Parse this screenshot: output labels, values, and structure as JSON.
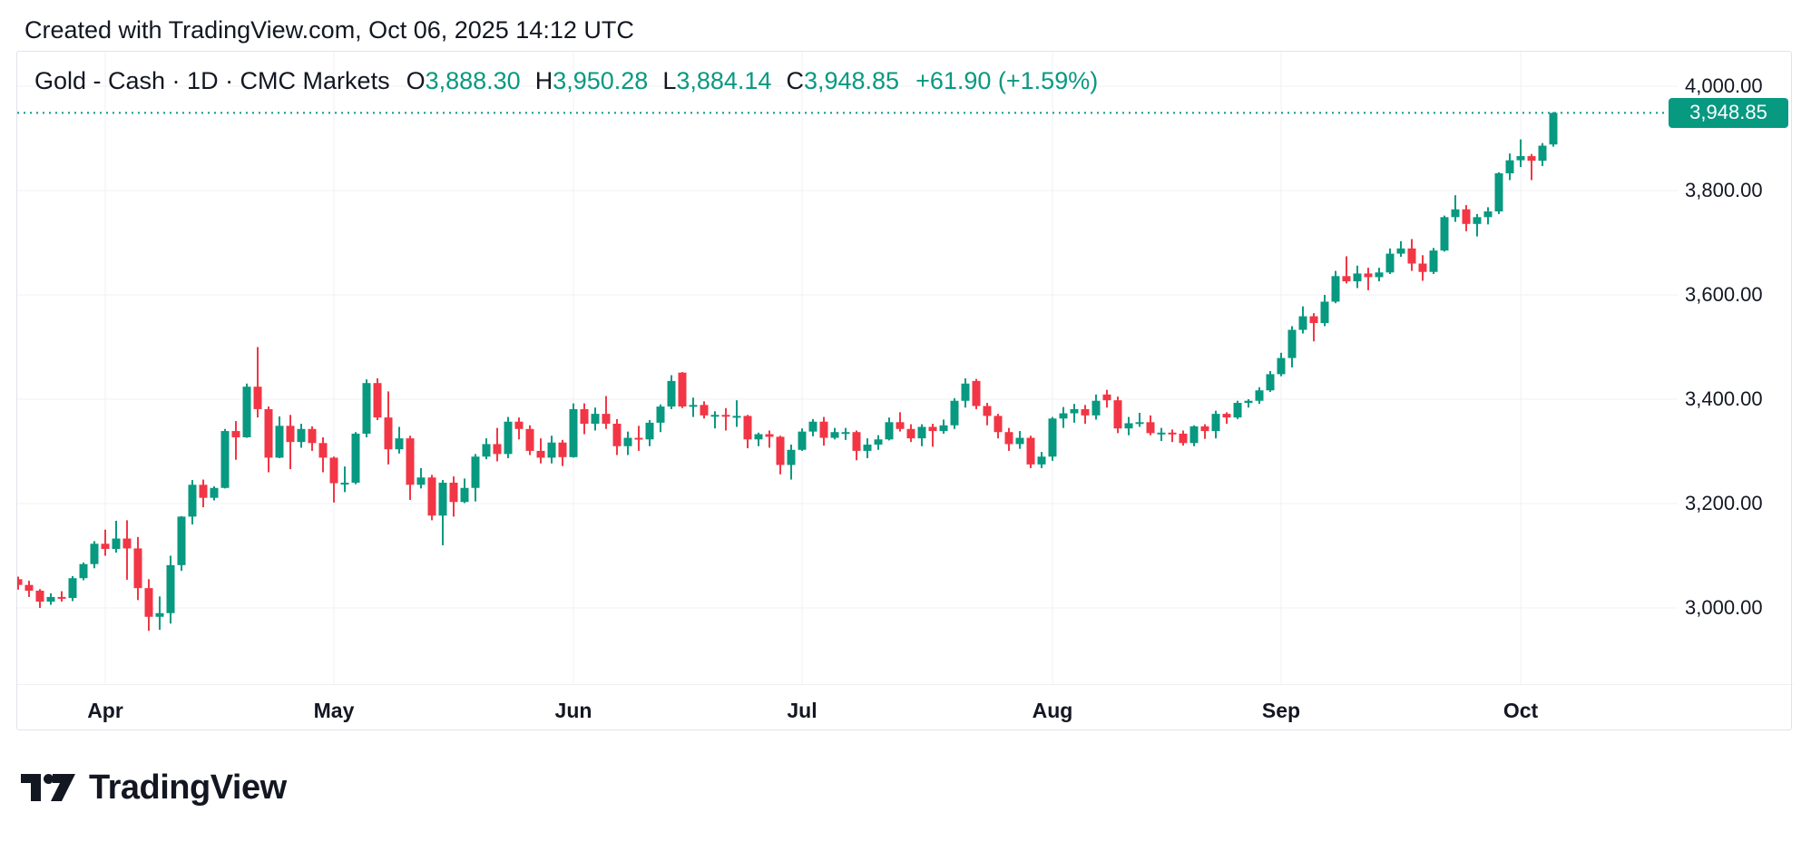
{
  "page": {
    "attribution": "Created with TradingView.com, Oct 06, 2025 14:12 UTC"
  },
  "header": {
    "symbol_title": "Gold - Cash · 1D · CMC Markets",
    "ohlc": [
      {
        "label": "O",
        "value": "3,888.30"
      },
      {
        "label": "H",
        "value": "3,950.28"
      },
      {
        "label": "L",
        "value": "3,884.14"
      },
      {
        "label": "C",
        "value": "3,948.85"
      }
    ],
    "change": "+61.90 (+1.59%)"
  },
  "colors": {
    "up": "#089981",
    "down": "#F23645",
    "text": "#131722",
    "grid": "#F0F1F4",
    "border": "#E0E3EB",
    "badge_bg": "#089981",
    "badge_text": "#FFFFFF"
  },
  "y_axis": {
    "tick_labels": [
      "4,000.00",
      "3,800.00",
      "3,600.00",
      "3,400.00",
      "3,200.00",
      "3,000.00"
    ],
    "tick_prices": [
      4000,
      3800,
      3600,
      3400,
      3200,
      3000
    ],
    "last_price_label": "3,948.85",
    "last_price": 3948.85
  },
  "x_axis": {
    "ticks": [
      {
        "label": "Apr",
        "index": 8
      },
      {
        "label": "May",
        "index": 29
      },
      {
        "label": "Jun",
        "index": 51
      },
      {
        "label": "Jul",
        "index": 72
      },
      {
        "label": "Aug",
        "index": 95
      },
      {
        "label": "Sep",
        "index": 116
      },
      {
        "label": "Oct",
        "index": 138
      }
    ]
  },
  "logo": {
    "text": "TradingView"
  },
  "chart_data": {
    "type": "candlestick",
    "symbol": "Gold - Cash",
    "interval": "1D",
    "provider": "CMC Markets",
    "title": "Gold - Cash · 1D · CMC Markets",
    "ylim": [
      2856,
      4070
    ],
    "price_gridlines": [
      4000,
      3800,
      3600,
      3400,
      3200,
      3000
    ],
    "legend_position": "none",
    "grid": true,
    "last_close": 3948.85,
    "ohlc_keys": [
      "date",
      "open",
      "high",
      "low",
      "close"
    ],
    "candles": [
      [
        "Mar 20",
        3055,
        3060,
        3035,
        3044
      ],
      [
        "Mar 21",
        3044,
        3052,
        3021,
        3033
      ],
      [
        "Mar 24",
        3033,
        3036,
        3000,
        3012
      ],
      [
        "Mar 25",
        3012,
        3028,
        3006,
        3021
      ],
      [
        "Mar 26",
        3021,
        3032,
        3012,
        3019
      ],
      [
        "Mar 27",
        3019,
        3061,
        3013,
        3057
      ],
      [
        "Mar 28",
        3057,
        3087,
        3053,
        3084
      ],
      [
        "Mar 31",
        3084,
        3128,
        3076,
        3123
      ],
      [
        "Apr 1",
        3123,
        3150,
        3100,
        3113
      ],
      [
        "Apr 2",
        3113,
        3167,
        3106,
        3133
      ],
      [
        "Apr 3",
        3133,
        3168,
        3054,
        3114
      ],
      [
        "Apr 4",
        3114,
        3136,
        3015,
        3038
      ],
      [
        "Apr 7",
        3038,
        3055,
        2956,
        2983
      ],
      [
        "Apr 8",
        2983,
        3022,
        2958,
        2990
      ],
      [
        "Apr 9",
        2990,
        3100,
        2970,
        3082
      ],
      [
        "Apr 10",
        3082,
        3176,
        3071,
        3175
      ],
      [
        "Apr 11",
        3175,
        3245,
        3160,
        3236
      ],
      [
        "Apr 14",
        3236,
        3246,
        3193,
        3211
      ],
      [
        "Apr 15",
        3211,
        3233,
        3206,
        3230
      ],
      [
        "Apr 16",
        3230,
        3343,
        3229,
        3339
      ],
      [
        "Apr 17",
        3339,
        3358,
        3284,
        3327
      ],
      [
        "Apr 21",
        3327,
        3430,
        3326,
        3424
      ],
      [
        "Apr 22",
        3424,
        3500,
        3365,
        3381
      ],
      [
        "Apr 23",
        3381,
        3386,
        3260,
        3288
      ],
      [
        "Apr 24",
        3288,
        3367,
        3287,
        3349
      ],
      [
        "Apr 25",
        3349,
        3370,
        3266,
        3318
      ],
      [
        "Apr 28",
        3318,
        3353,
        3307,
        3343
      ],
      [
        "Apr 29",
        3343,
        3348,
        3301,
        3316
      ],
      [
        "Apr 30",
        3316,
        3327,
        3260,
        3288
      ],
      [
        "May 1",
        3288,
        3290,
        3202,
        3239
      ],
      [
        "May 2",
        3239,
        3271,
        3222,
        3240
      ],
      [
        "May 5",
        3240,
        3337,
        3237,
        3334
      ],
      [
        "May 6",
        3334,
        3438,
        3327,
        3431
      ],
      [
        "May 7",
        3431,
        3440,
        3360,
        3365
      ],
      [
        "May 8",
        3365,
        3415,
        3275,
        3304
      ],
      [
        "May 9",
        3304,
        3347,
        3296,
        3325
      ],
      [
        "May 12",
        3325,
        3330,
        3207,
        3236
      ],
      [
        "May 13",
        3236,
        3268,
        3229,
        3250
      ],
      [
        "May 14",
        3250,
        3255,
        3168,
        3177
      ],
      [
        "May 15",
        3177,
        3245,
        3120,
        3240
      ],
      [
        "May 16",
        3240,
        3252,
        3175,
        3203
      ],
      [
        "May 19",
        3203,
        3248,
        3201,
        3230
      ],
      [
        "May 20",
        3230,
        3295,
        3204,
        3290
      ],
      [
        "May 21",
        3290,
        3325,
        3285,
        3314
      ],
      [
        "May 22",
        3314,
        3345,
        3281,
        3295
      ],
      [
        "May 23",
        3295,
        3366,
        3287,
        3357
      ],
      [
        "May 26",
        3357,
        3365,
        3323,
        3343
      ],
      [
        "May 27",
        3343,
        3350,
        3293,
        3301
      ],
      [
        "May 28",
        3301,
        3325,
        3277,
        3288
      ],
      [
        "May 29",
        3288,
        3330,
        3277,
        3317
      ],
      [
        "May 30",
        3317,
        3322,
        3272,
        3289
      ],
      [
        "Jun 2",
        3289,
        3392,
        3288,
        3381
      ],
      [
        "Jun 3",
        3381,
        3392,
        3333,
        3353
      ],
      [
        "Jun 4",
        3353,
        3384,
        3340,
        3372
      ],
      [
        "Jun 5",
        3372,
        3406,
        3343,
        3353
      ],
      [
        "Jun 6",
        3353,
        3362,
        3293,
        3310
      ],
      [
        "Jun 9",
        3310,
        3338,
        3293,
        3326
      ],
      [
        "Jun 10",
        3326,
        3349,
        3301,
        3323
      ],
      [
        "Jun 11",
        3323,
        3360,
        3310,
        3355
      ],
      [
        "Jun 12",
        3355,
        3390,
        3337,
        3386
      ],
      [
        "Jun 13",
        3386,
        3446,
        3381,
        3435
      ],
      [
        "Jun 16",
        3451,
        3452,
        3383,
        3386
      ],
      [
        "Jun 17",
        3386,
        3403,
        3366,
        3389
      ],
      [
        "Jun 18",
        3389,
        3396,
        3363,
        3369
      ],
      [
        "Jun 19",
        3369,
        3377,
        3344,
        3370
      ],
      [
        "Jun 20",
        3370,
        3383,
        3340,
        3368
      ],
      [
        "Jun 23",
        3368,
        3398,
        3347,
        3368
      ],
      [
        "Jun 24",
        3368,
        3370,
        3306,
        3323
      ],
      [
        "Jun 25",
        3323,
        3336,
        3310,
        3333
      ],
      [
        "Jun 26",
        3333,
        3340,
        3307,
        3328
      ],
      [
        "Jun 27",
        3328,
        3330,
        3256,
        3274
      ],
      [
        "Jun 30",
        3274,
        3313,
        3246,
        3303
      ],
      [
        "Jul 1",
        3303,
        3344,
        3301,
        3338
      ],
      [
        "Jul 2",
        3338,
        3362,
        3329,
        3357
      ],
      [
        "Jul 3",
        3357,
        3366,
        3311,
        3326
      ],
      [
        "Jul 4",
        3326,
        3345,
        3323,
        3337
      ],
      [
        "Jul 7",
        3337,
        3345,
        3322,
        3337
      ],
      [
        "Jul 8",
        3337,
        3340,
        3283,
        3301
      ],
      [
        "Jul 9",
        3301,
        3325,
        3287,
        3313
      ],
      [
        "Jul 10",
        3313,
        3331,
        3303,
        3323
      ],
      [
        "Jul 11",
        3323,
        3365,
        3321,
        3356
      ],
      [
        "Jul 14",
        3356,
        3375,
        3338,
        3343
      ],
      [
        "Jul 15",
        3343,
        3352,
        3318,
        3325
      ],
      [
        "Jul 16",
        3325,
        3352,
        3310,
        3347
      ],
      [
        "Jul 17",
        3347,
        3353,
        3309,
        3339
      ],
      [
        "Jul 18",
        3339,
        3361,
        3334,
        3350
      ],
      [
        "Jul 21",
        3350,
        3402,
        3343,
        3397
      ],
      [
        "Jul 22",
        3397,
        3440,
        3384,
        3430
      ],
      [
        "Jul 23",
        3435,
        3439,
        3381,
        3387
      ],
      [
        "Jul 24",
        3387,
        3393,
        3350,
        3368
      ],
      [
        "Jul 25",
        3368,
        3372,
        3325,
        3337
      ],
      [
        "Jul 28",
        3337,
        3345,
        3301,
        3314
      ],
      [
        "Jul 29",
        3314,
        3339,
        3305,
        3326
      ],
      [
        "Jul 30",
        3326,
        3330,
        3268,
        3275
      ],
      [
        "Jul 31",
        3275,
        3299,
        3268,
        3290
      ],
      [
        "Aug 1",
        3290,
        3366,
        3282,
        3363
      ],
      [
        "Aug 4",
        3363,
        3385,
        3345,
        3373
      ],
      [
        "Aug 5",
        3373,
        3391,
        3355,
        3381
      ],
      [
        "Aug 6",
        3381,
        3389,
        3353,
        3369
      ],
      [
        "Aug 7",
        3369,
        3409,
        3361,
        3397
      ],
      [
        "Aug 8",
        3409,
        3418,
        3384,
        3398
      ],
      [
        "Aug 11",
        3398,
        3405,
        3335,
        3344
      ],
      [
        "Aug 12",
        3344,
        3366,
        3331,
        3354
      ],
      [
        "Aug 13",
        3354,
        3374,
        3347,
        3356
      ],
      [
        "Aug 14",
        3356,
        3369,
        3331,
        3335
      ],
      [
        "Aug 15",
        3335,
        3345,
        3320,
        3336
      ],
      [
        "Aug 18",
        3336,
        3342,
        3318,
        3334
      ],
      [
        "Aug 19",
        3334,
        3340,
        3311,
        3316
      ],
      [
        "Aug 20",
        3316,
        3350,
        3310,
        3348
      ],
      [
        "Aug 21",
        3348,
        3352,
        3324,
        3339
      ],
      [
        "Aug 22",
        3339,
        3378,
        3325,
        3372
      ],
      [
        "Aug 25",
        3372,
        3375,
        3353,
        3365
      ],
      [
        "Aug 26",
        3365,
        3397,
        3362,
        3393
      ],
      [
        "Aug 27",
        3393,
        3400,
        3384,
        3397
      ],
      [
        "Aug 28",
        3397,
        3423,
        3391,
        3417
      ],
      [
        "Aug 29",
        3417,
        3454,
        3414,
        3448
      ],
      [
        "Sep 1",
        3448,
        3489,
        3444,
        3479
      ],
      [
        "Sep 2",
        3479,
        3540,
        3461,
        3533
      ],
      [
        "Sep 3",
        3533,
        3578,
        3526,
        3559
      ],
      [
        "Sep 4",
        3559,
        3565,
        3511,
        3546
      ],
      [
        "Sep 5",
        3546,
        3600,
        3540,
        3587
      ],
      [
        "Sep 8",
        3587,
        3646,
        3584,
        3636
      ],
      [
        "Sep 9",
        3636,
        3674,
        3622,
        3626
      ],
      [
        "Sep 10",
        3626,
        3656,
        3613,
        3641
      ],
      [
        "Sep 11",
        3641,
        3652,
        3609,
        3634
      ],
      [
        "Sep 12",
        3634,
        3652,
        3626,
        3643
      ],
      [
        "Sep 15",
        3643,
        3689,
        3640,
        3679
      ],
      [
        "Sep 16",
        3679,
        3703,
        3673,
        3689
      ],
      [
        "Sep 17",
        3689,
        3707,
        3646,
        3660
      ],
      [
        "Sep 18",
        3660,
        3676,
        3627,
        3644
      ],
      [
        "Sep 19",
        3644,
        3690,
        3640,
        3685
      ],
      [
        "Sep 22",
        3685,
        3752,
        3683,
        3749
      ],
      [
        "Sep 23",
        3749,
        3791,
        3740,
        3764
      ],
      [
        "Sep 24",
        3764,
        3772,
        3722,
        3736
      ],
      [
        "Sep 25",
        3736,
        3755,
        3712,
        3749
      ],
      [
        "Sep 26",
        3749,
        3768,
        3735,
        3760
      ],
      [
        "Sep 29",
        3760,
        3835,
        3755,
        3833
      ],
      [
        "Sep 30",
        3833,
        3871,
        3820,
        3858
      ],
      [
        "Oct 1",
        3858,
        3898,
        3845,
        3866
      ],
      [
        "Oct 2",
        3866,
        3870,
        3820,
        3857
      ],
      [
        "Oct 3",
        3857,
        3891,
        3847,
        3886
      ],
      [
        "Oct 6",
        3888.3,
        3950.28,
        3884.14,
        3948.85
      ]
    ]
  }
}
